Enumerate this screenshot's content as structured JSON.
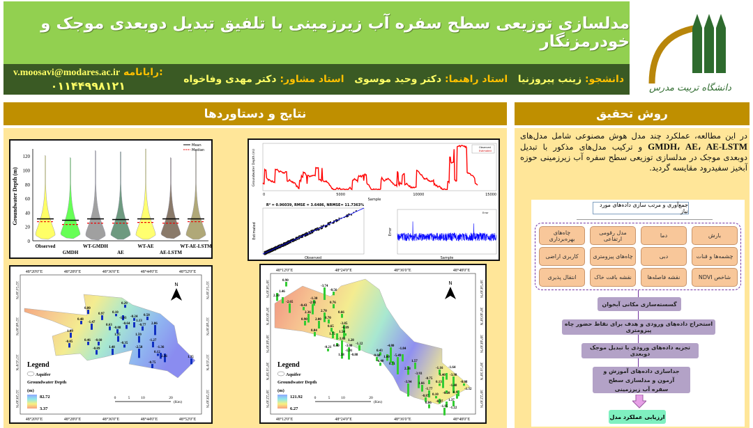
{
  "header": {
    "title": "مدلسازی توزیعی سطح سفره آب زیرزمینی با تلفیق تبدیل دوبعدی موجک و خودرمزنگار",
    "student_label": "دانشجو:",
    "student": "زینب پیروزنیا",
    "supervisor_label": "استاد راهنما:",
    "supervisor": "دکتر وحید موسوی",
    "advisor_label": "استاد مشاور:",
    "advisor": "دکتر مهدی وفاخواه",
    "email_label": "رایانامه:",
    "email": "v.moosavi@modares.ac.ir",
    "phone": "۰۱۱۴۴۹۹۸۱۲۱",
    "logo_text": "دانشگاه تربیت مدرس",
    "colors": {
      "title_bg": "#92d050",
      "band_bg": "#3a5a24",
      "section_bg": "#bf8f00",
      "panel_bg": "#ffe699"
    }
  },
  "results": {
    "heading": "نتایج و دستاوردها"
  },
  "method": {
    "heading": "روش تحقیق",
    "text_before": "در این مطالعه، عملکرد چند مدل هوش مصنوعی شامل مدل‌های ",
    "models": "GMDH، AE، AE-LSTM",
    "text_after": " و ترکیب مدل‌های مذکور با تبدیل دوبعدی موجک در مدلسازی توزیعی سطح سفره آب زیرزمینی حوزه آبخیز سفیدرود مقایسه گردید.",
    "flow": {
      "top": "جمع‌آوری و مرتب سازی داده‌های مورد نیاز",
      "inputs": [
        "بارش",
        "دما",
        "مدل رقومی ارتفاعی",
        "چاه‌های بهره‌برداری",
        "چشمه‌ها و قنات",
        "دبی",
        "چاه‌های پیزومتری",
        "کاربری اراضی",
        "شاخص NDVI",
        "نقشه فاصله‌ها",
        "نقشه بافت خاک",
        "انتقال پذیری"
      ],
      "steps": [
        "گسسته‌سازی مکانی آبخوان",
        "استخراج داده‌های ورودی و هدف برای نقاط حضور چاه پیزومتری",
        "تجزیه داده‌های ورودی با تبدیل موجک دوبعدی",
        "جداسازی داده‌های آموزش و آزمون و مدلسازی سطح سفره آب زیرزمینی"
      ],
      "final": "ارزیابی عملکرد مدل"
    }
  },
  "chart_data": [
    {
      "type": "violin",
      "ylabel": "Groundwater Depth (m)",
      "ylim": [
        0,
        130
      ],
      "yticks": [
        0,
        20,
        40,
        60,
        80,
        100,
        120
      ],
      "categories": [
        "Observed",
        "GMDH",
        "WT-GMDH",
        "AE",
        "WT-AE",
        "AE-LSTM",
        "WT-AE-LSTM"
      ],
      "mean": [
        31,
        29,
        31,
        30,
        31,
        31,
        31
      ],
      "median": [
        27,
        23,
        25,
        25,
        26,
        25,
        27
      ],
      "max": [
        121,
        118,
        128,
        126,
        130,
        118,
        128
      ],
      "min": [
        2,
        3,
        1,
        2,
        2,
        3,
        2
      ],
      "legend": [
        "Mean",
        "Median"
      ],
      "colors": [
        "#ffff66",
        "#66ff55",
        "#a0a0a0",
        "#6e9a80",
        "#ffff70",
        "#8a7a6a",
        "#b0a878"
      ]
    },
    {
      "type": "line",
      "ylabel": "Groundwater Depth (m)",
      "xlabel": "Sample",
      "xlim": [
        0,
        15000
      ],
      "ylim": [
        0,
        120
      ],
      "xticks": [
        0,
        5000,
        10000,
        15000
      ],
      "yticks": [
        20,
        40,
        60,
        80,
        100,
        120
      ],
      "series": [
        {
          "name": "Observed"
        },
        {
          "name": "Estimated"
        }
      ]
    },
    {
      "type": "scatter",
      "title": "R² = 0.96039, RMSE = 3.6486, NRMSE= 11.7363%",
      "xlabel": "Observed",
      "ylabel": "Estimated",
      "xlim": [
        0,
        125
      ],
      "ylim": [
        0,
        125
      ],
      "xticks": [
        20,
        40,
        60,
        80,
        100,
        120
      ],
      "yticks": [
        20,
        40,
        60,
        80,
        100,
        120
      ]
    },
    {
      "type": "line",
      "xlabel": "Sample",
      "ylabel": "Error",
      "xlim": [
        0,
        14000
      ],
      "ylim": [
        -25,
        40
      ],
      "xticks": [
        0,
        2000,
        4000,
        6000,
        8000,
        10000,
        12000,
        14000
      ],
      "yticks": [
        -20,
        -10,
        0,
        10,
        20,
        30,
        40
      ],
      "series": [
        {
          "name": "Error"
        }
      ]
    }
  ],
  "map1": {
    "top_ticks": [
      "48°20'0\"E",
      "48°28'0\"E",
      "48°36'0\"E",
      "48°44'0\"E",
      "48°52'0\"E"
    ],
    "side_ticks": [
      "35°51'30\"N",
      "35°40'30\"N",
      "35°35'0\"N",
      "35°29'30\"N"
    ],
    "legend_title": "Legend",
    "aquifer": "Aquifer",
    "gw": "Groundwater Depth",
    "unit": "(m)",
    "max": "82.72",
    "min": "3.37",
    "scale": [
      "0",
      "5",
      "10",
      "20",
      "(Km)"
    ],
    "north": "N",
    "values": [
      "0.80",
      "0.48",
      "0.97",
      "0.10",
      "-1.03",
      "0.29",
      "-0.24",
      "0.50",
      "-1.47",
      "0.63",
      "-0.64",
      "1.13",
      "-0.77",
      "2.86",
      "1.09",
      "-0.88",
      "-0.85",
      "0.46",
      "-0.60",
      "1.25",
      "-0.89",
      "1.48",
      "-0.35",
      "1.59",
      "-1.27",
      "-2.58",
      "0.12",
      "-1.36",
      "2.36",
      "-0.75",
      "1.35"
    ]
  },
  "map2": {
    "top_ticks": [
      "48°12'0\"E",
      "48°24'0\"E",
      "48°36'0\"E",
      "48°48'0\"E"
    ],
    "side_ticks": [
      "36°58'30\"N",
      "36°40'30\"N",
      "36°40'30\"N",
      "36°31'30\"N",
      "36°22'30\"N"
    ],
    "legend_title": "Legend",
    "aquifer": "Aquifer",
    "gw": "Groundwater Depth",
    "unit": "(m)",
    "max": "121.92",
    "min": "6.27",
    "scale": [
      "0",
      "5",
      "10",
      "20",
      "(Km)"
    ],
    "north": "N",
    "values": [
      "0.90",
      "2.10",
      "1.46",
      "-3.74",
      "-0.56",
      "-2.65",
      "-1.30",
      "0.76",
      "-0.43",
      "-2.91",
      "0.66",
      "2.36",
      "0.90",
      "2.70",
      "2.00",
      "0.70",
      "0.65",
      "-3.85",
      "1.75",
      "0.84",
      "1.54",
      "-0.09",
      "-3.86",
      "0.40",
      "-3.08",
      "-1.22",
      "-1.91",
      "-0.21",
      "1.28",
      "1.58",
      "-0.88",
      "0.43",
      "1.60",
      "-4.80",
      "-0.68",
      "-0.40",
      "0.71",
      "-5.49",
      "-1.84",
      "1.57",
      "2.38",
      "-1.16",
      "3.40",
      "-3.98",
      "-0.75",
      "-3.93",
      "0.13",
      "-1.64",
      "-1.48",
      "-3.94",
      "1.66",
      "-1.77",
      "-0.20",
      "0.95",
      "-0.08",
      "-0.87",
      "0.10",
      "-0.97",
      "1.37",
      "-1.32",
      "0.66",
      "-1.95",
      "-1.22"
    ]
  }
}
